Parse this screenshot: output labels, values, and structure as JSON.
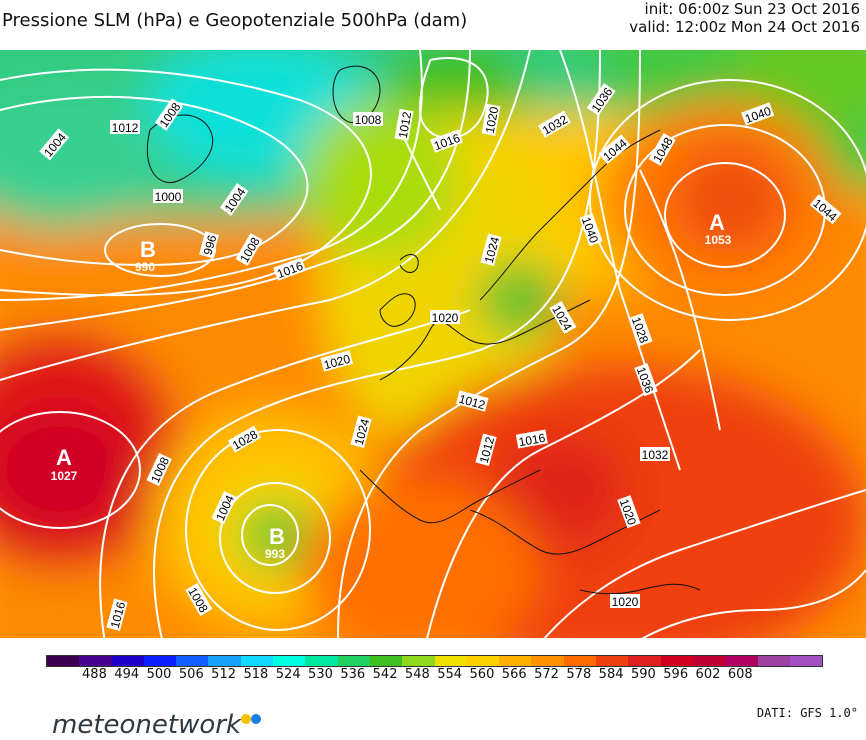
{
  "header": {
    "title": "Pressione SLM (hPa) e Geopotenziale 500hPa (dam)",
    "init": "init: 06:00z Sun 23 Oct 2016",
    "valid": "valid: 12:00z Mon 24 Oct 2016"
  },
  "map": {
    "pressure_centers": [
      {
        "letter": "A",
        "value": "1027",
        "kind": "high"
      },
      {
        "letter": "B",
        "value": "993",
        "kind": "low"
      },
      {
        "letter": "B",
        "value": "990",
        "kind": "low"
      },
      {
        "letter": "A",
        "value": "1053",
        "kind": "high"
      }
    ],
    "isobar_labels": [
      "1004",
      "1008",
      "1012",
      "1000",
      "1004",
      "996",
      "1008",
      "1016",
      "1008",
      "1012",
      "1016",
      "1020",
      "1032",
      "1036",
      "1040",
      "1044",
      "1048",
      "1044",
      "1040",
      "1024",
      "1028",
      "1020",
      "1024",
      "1036",
      "1032",
      "1020",
      "1016",
      "1012",
      "1012",
      "1020",
      "1028",
      "1024",
      "1008",
      "1004",
      "1008",
      "1016",
      "1020"
    ]
  },
  "colorbar": {
    "ticks": [
      "488",
      "494",
      "500",
      "506",
      "512",
      "518",
      "524",
      "530",
      "536",
      "542",
      "548",
      "554",
      "560",
      "566",
      "572",
      "578",
      "584",
      "590",
      "596",
      "602",
      "608"
    ],
    "colors": [
      "#3a0050",
      "#4a0090",
      "#1e00c8",
      "#0a20ff",
      "#1060ff",
      "#18a0ff",
      "#10d8ff",
      "#00ffe0",
      "#00e8a0",
      "#20d060",
      "#40c020",
      "#90d820",
      "#f0e000",
      "#ffd000",
      "#ffb000",
      "#ff9000",
      "#ff6a00",
      "#f04010",
      "#e02020",
      "#d00020",
      "#c00030",
      "#b00060",
      "#a040a0",
      "#a050c0"
    ]
  },
  "footer": {
    "logo_text": "meteonetwork",
    "dot1_color": "#f2c200",
    "dot2_color": "#1a7fe0",
    "source": "DATI: GFS 1.0°"
  }
}
